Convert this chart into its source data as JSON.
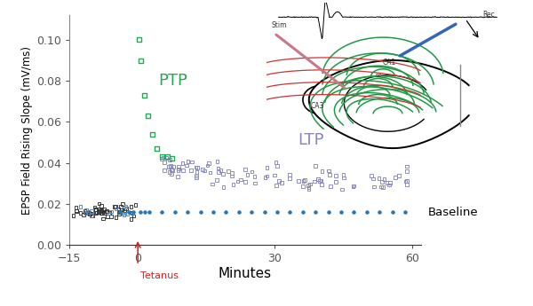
{
  "xlim": [
    -15,
    62
  ],
  "ylim": [
    0,
    0.112
  ],
  "yticks": [
    0,
    0.02,
    0.04,
    0.06,
    0.08,
    0.1
  ],
  "xticks": [
    -15,
    0,
    30,
    60
  ],
  "xlabel": "Minutes",
  "ylabel": "EPSP Field Rising Slope (mV/ms)",
  "baseline_y": 0.016,
  "baseline_color": "#2277BB",
  "baseline_label": "Baseline",
  "ptp_label": "PTP",
  "ptp_color": "#22AA55",
  "ltp_label": "LTP",
  "ltp_color": "#8888BB",
  "tetanus_color": "#CC2222",
  "tetanus_label": "Tetanus",
  "scatter_dark": "#333333",
  "scatter_blue": "#4488CC",
  "inset_bg": "#aaaaaa",
  "inset_box_bg": "#ffffff",
  "inset_gray_bar": "#aaaaaa"
}
